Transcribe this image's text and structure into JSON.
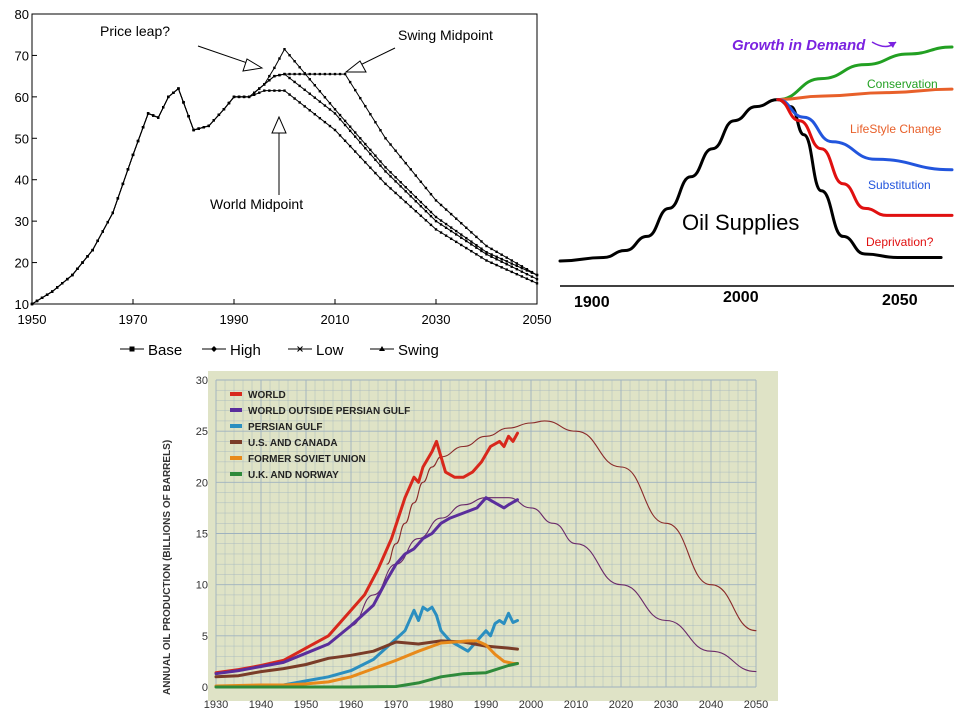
{
  "chart_data": [
    {
      "type": "line",
      "xlim": [
        1950,
        2050
      ],
      "ylim": [
        10,
        80
      ],
      "x_ticks": [
        "1950",
        "1970",
        "1990",
        "2010",
        "2030",
        "2050"
      ],
      "y_ticks": [
        "10",
        "20",
        "30",
        "40",
        "50",
        "60",
        "70",
        "80"
      ],
      "grid": false,
      "legend": "bottom",
      "series": [
        {
          "name": "Base",
          "marker": "square",
          "points": [
            [
              1950,
              10
            ],
            [
              1954,
              13
            ],
            [
              1958,
              17
            ],
            [
              1962,
              23
            ],
            [
              1966,
              32
            ],
            [
              1970,
              46
            ],
            [
              1973,
              56
            ],
            [
              1975,
              55
            ],
            [
              1977,
              60
            ],
            [
              1979,
              62
            ],
            [
              1982,
              52
            ],
            [
              1985,
              53
            ],
            [
              1988,
              57
            ],
            [
              1990,
              60
            ],
            [
              1993,
              60
            ],
            [
              1996,
              63
            ],
            [
              1998,
              65
            ],
            [
              2000,
              65.5
            ],
            [
              2010,
              56
            ],
            [
              2020,
              42
            ],
            [
              2030,
              30
            ],
            [
              2040,
              22
            ],
            [
              2050,
              16
            ]
          ]
        },
        {
          "name": "High",
          "marker": "diamond",
          "points": [
            [
              1950,
              10
            ],
            [
              1954,
              13
            ],
            [
              1958,
              17
            ],
            [
              1962,
              23
            ],
            [
              1966,
              32
            ],
            [
              1970,
              46
            ],
            [
              1973,
              56
            ],
            [
              1975,
              55
            ],
            [
              1977,
              60
            ],
            [
              1979,
              62
            ],
            [
              1982,
              52
            ],
            [
              1985,
              53
            ],
            [
              1988,
              57
            ],
            [
              1990,
              60
            ],
            [
              1993,
              60
            ],
            [
              1996,
              63
            ],
            [
              1998,
              67
            ],
            [
              2000,
              71.5
            ],
            [
              2010,
              57
            ],
            [
              2020,
              43
            ],
            [
              2030,
              31
            ],
            [
              2040,
              22.5
            ],
            [
              2050,
              17
            ]
          ]
        },
        {
          "name": "Low",
          "marker": "x",
          "points": [
            [
              1950,
              10
            ],
            [
              1954,
              13
            ],
            [
              1958,
              17
            ],
            [
              1962,
              23
            ],
            [
              1966,
              32
            ],
            [
              1970,
              46
            ],
            [
              1973,
              56
            ],
            [
              1975,
              55
            ],
            [
              1977,
              60
            ],
            [
              1979,
              62
            ],
            [
              1982,
              52
            ],
            [
              1985,
              53
            ],
            [
              1988,
              57
            ],
            [
              1990,
              60
            ],
            [
              1993,
              60
            ],
            [
              1996,
              61.5
            ],
            [
              2000,
              61.5
            ],
            [
              2010,
              52
            ],
            [
              2020,
              39
            ],
            [
              2030,
              28
            ],
            [
              2040,
              20.5
            ],
            [
              2050,
              15
            ]
          ]
        },
        {
          "name": "Swing",
          "marker": "triangle",
          "points": [
            [
              1950,
              10
            ],
            [
              1954,
              13
            ],
            [
              1958,
              17
            ],
            [
              1962,
              23
            ],
            [
              1966,
              32
            ],
            [
              1970,
              46
            ],
            [
              1973,
              56
            ],
            [
              1975,
              55
            ],
            [
              1977,
              60
            ],
            [
              1979,
              62
            ],
            [
              1982,
              52
            ],
            [
              1985,
              53
            ],
            [
              1988,
              57
            ],
            [
              1990,
              60
            ],
            [
              1993,
              60
            ],
            [
              1996,
              63
            ],
            [
              1998,
              65
            ],
            [
              2000,
              65.5
            ],
            [
              2012,
              65.5
            ],
            [
              2020,
              50
            ],
            [
              2030,
              35
            ],
            [
              2040,
              24
            ],
            [
              2050,
              17
            ]
          ]
        }
      ],
      "annotations": [
        {
          "text": "Price leap?",
          "at": [
            1996,
            67
          ]
        },
        {
          "text": "Swing Midpoint",
          "at": [
            2012,
            65.5
          ]
        },
        {
          "text": "World Midpoint",
          "at": [
            1998,
            61
          ]
        }
      ]
    },
    {
      "type": "line",
      "xlim": [
        1900,
        2080
      ],
      "x_ticks": [
        "1900",
        "2000",
        "2050"
      ],
      "grid": false,
      "legend": "inline",
      "series": [
        {
          "label": "Oil Supplies",
          "color": "#000000",
          "points": [
            [
              1900,
              2
            ],
            [
              1920,
              3
            ],
            [
              1930,
              5
            ],
            [
              1940,
              9
            ],
            [
              1950,
              17
            ],
            [
              1960,
              26
            ],
            [
              1970,
              34
            ],
            [
              1980,
              42
            ],
            [
              1990,
              46
            ],
            [
              2000,
              48
            ],
            [
              2006,
              46
            ],
            [
              2012,
              38
            ],
            [
              2020,
              22
            ],
            [
              2030,
              9
            ],
            [
              2040,
              4
            ],
            [
              2055,
              3
            ],
            [
              2075,
              3
            ]
          ]
        },
        {
          "label": "Conservation",
          "color": "#22a022",
          "points": [
            [
              2000,
              48
            ],
            [
              2020,
              54
            ],
            [
              2040,
              58
            ],
            [
              2060,
              61
            ],
            [
              2080,
              63
            ]
          ]
        },
        {
          "label": "LifeStyle Change",
          "color": "#e8602a",
          "points": [
            [
              2000,
              48
            ],
            [
              2020,
              49
            ],
            [
              2050,
              50
            ],
            [
              2080,
              51
            ]
          ]
        },
        {
          "label": "Substitution",
          "color": "#2255dd",
          "points": [
            [
              2000,
              48
            ],
            [
              2012,
              43
            ],
            [
              2025,
              36
            ],
            [
              2045,
              31
            ],
            [
              2080,
              28
            ]
          ]
        },
        {
          "label": "Deprivation?",
          "color": "#e01010",
          "points": [
            [
              2000,
              48
            ],
            [
              2010,
              42
            ],
            [
              2020,
              34
            ],
            [
              2030,
              24
            ],
            [
              2040,
              17
            ],
            [
              2050,
              15
            ],
            [
              2080,
              15
            ]
          ]
        }
      ],
      "annotations": [
        {
          "text": "Growth in Demand",
          "color": "#7b22e0"
        },
        {
          "text": "Oil Supplies",
          "color": "#000000"
        }
      ]
    },
    {
      "type": "line",
      "ylabel": "ANNUAL OIL PRODUCTION (BILLIONS OF BARRELS)",
      "xlim": [
        1930,
        2050
      ],
      "ylim": [
        0,
        30
      ],
      "x_ticks": [
        "1930",
        "1940",
        "1950",
        "1960",
        "1970",
        "1980",
        "1990",
        "2000",
        "2010",
        "2020",
        "2030",
        "2040",
        "2050"
      ],
      "y_ticks": [
        "0",
        "5",
        "10",
        "15",
        "20",
        "25",
        "30"
      ],
      "grid": true,
      "legend": "top-left",
      "series": [
        {
          "name": "WORLD",
          "color": "#d8281c",
          "x": [
            1930,
            1935,
            1940,
            1945,
            1950,
            1955,
            1960,
            1963,
            1966,
            1969,
            1972,
            1974,
            1975,
            1976,
            1978,
            1979,
            1980,
            1981,
            1983,
            1985,
            1987,
            1989,
            1991,
            1993,
            1994,
            1995,
            1996,
            1997
          ],
          "y": [
            1.4,
            1.7,
            2.1,
            2.6,
            3.8,
            5.0,
            7.5,
            9.0,
            11.5,
            14.5,
            18.5,
            20.5,
            20.0,
            21.5,
            23.0,
            24.0,
            22.5,
            21.0,
            20.5,
            20.5,
            21.0,
            22.0,
            23.5,
            24.0,
            23.5,
            24.5,
            24.0,
            24.8
          ]
        },
        {
          "name": "WORLD OUTSIDE PERSIAN GULF",
          "color": "#5a2e9c",
          "x": [
            1930,
            1935,
            1940,
            1945,
            1950,
            1955,
            1960,
            1965,
            1968,
            1970,
            1972,
            1974,
            1976,
            1978,
            1980,
            1982,
            1985,
            1988,
            1990,
            1992,
            1994,
            1995,
            1997
          ],
          "y": [
            1.3,
            1.6,
            2.0,
            2.4,
            3.3,
            4.2,
            6.0,
            8.0,
            10.5,
            12.0,
            13.0,
            13.5,
            14.5,
            15.0,
            16.0,
            16.5,
            17.0,
            17.5,
            18.5,
            18.0,
            17.5,
            17.8,
            18.3
          ]
        },
        {
          "name": "PERSIAN GULF",
          "color": "#2b8fc0",
          "x": [
            1930,
            1940,
            1945,
            1950,
            1955,
            1960,
            1965,
            1970,
            1972,
            1974,
            1975,
            1976,
            1977,
            1978,
            1979,
            1980,
            1982,
            1984,
            1986,
            1988,
            1990,
            1991,
            1992,
            1993,
            1994,
            1995,
            1996,
            1997
          ],
          "y": [
            0.05,
            0.1,
            0.2,
            0.6,
            1.0,
            1.6,
            2.7,
            4.7,
            5.5,
            7.5,
            6.5,
            7.8,
            7.5,
            7.8,
            7.0,
            5.5,
            4.5,
            4.0,
            3.5,
            4.5,
            5.5,
            5.0,
            6.2,
            6.5,
            6.2,
            7.2,
            6.3,
            6.5
          ]
        },
        {
          "name": "U.S. AND CANADA",
          "color": "#7a3c28",
          "x": [
            1930,
            1935,
            1940,
            1945,
            1950,
            1955,
            1960,
            1965,
            1970,
            1975,
            1980,
            1985,
            1990,
            1995,
            1997
          ],
          "y": [
            1.0,
            1.1,
            1.5,
            1.8,
            2.2,
            2.8,
            3.1,
            3.5,
            4.4,
            4.2,
            4.5,
            4.4,
            4.0,
            3.8,
            3.7
          ]
        },
        {
          "name": "FORMER SOVIET UNION",
          "color": "#e88a1a",
          "x": [
            1930,
            1935,
            1940,
            1945,
            1950,
            1955,
            1960,
            1965,
            1970,
            1975,
            1980,
            1983,
            1986,
            1988,
            1990,
            1992,
            1994,
            1996,
            1997
          ],
          "y": [
            0.1,
            0.15,
            0.2,
            0.2,
            0.3,
            0.5,
            1.0,
            1.8,
            2.6,
            3.5,
            4.3,
            4.4,
            4.5,
            4.5,
            4.1,
            3.2,
            2.5,
            2.3,
            2.3
          ]
        },
        {
          "name": "U.K. AND NORWAY",
          "color": "#2e8a3a",
          "x": [
            1930,
            1960,
            1970,
            1975,
            1980,
            1985,
            1990,
            1995,
            1997
          ],
          "y": [
            0,
            0,
            0.05,
            0.4,
            1.0,
            1.3,
            1.4,
            2.1,
            2.3
          ]
        },
        {
          "name": "",
          "color": "#8a2a2a",
          "thin": true,
          "x": [
            1968,
            1970,
            1972,
            1974,
            1976,
            1978,
            1980,
            1985,
            1990,
            1995,
            2000,
            2003,
            2010,
            2020,
            2030,
            2040,
            2050
          ],
          "y": [
            12,
            14,
            16,
            18,
            20,
            21.5,
            22.5,
            23.5,
            24.5,
            25.3,
            25.8,
            26,
            25,
            21.5,
            16,
            10,
            5.5
          ]
        },
        {
          "name": "",
          "color": "#6a2a6a",
          "thin": true,
          "x": [
            1960,
            1965,
            1970,
            1975,
            1980,
            1985,
            1990,
            1995,
            2000,
            2005,
            2010,
            2020,
            2030,
            2040,
            2050
          ],
          "y": [
            6,
            9,
            12,
            14.5,
            16.5,
            17.8,
            18.5,
            18.5,
            17.5,
            16,
            14,
            10,
            6.5,
            3.5,
            1.5
          ]
        }
      ]
    }
  ],
  "chart1": {
    "x_ticks": [
      "1950",
      "1970",
      "1990",
      "2010",
      "2030",
      "2050"
    ],
    "y_ticks": [
      "10",
      "20",
      "30",
      "40",
      "50",
      "60",
      "70",
      "80"
    ],
    "annotations": [
      "Price leap?",
      "Swing Midpoint",
      "World Midpoint"
    ],
    "legend": [
      "Base",
      "High",
      "Low",
      "Swing"
    ]
  },
  "chart2": {
    "title": "Growth in Demand",
    "labels": [
      "Conservation",
      "LifeStyle Change",
      "Substitution",
      "Deprivation?"
    ],
    "supply_label": "Oil Supplies",
    "x_ticks": [
      "1900",
      "2000",
      "2050"
    ]
  },
  "chart3": {
    "ylabel": "ANNUAL OIL PRODUCTION (BILLIONS OF BARRELS)",
    "x_ticks": [
      "1930",
      "1940",
      "1950",
      "1960",
      "1970",
      "1980",
      "1990",
      "2000",
      "2010",
      "2020",
      "2030",
      "2040",
      "2050"
    ],
    "y_ticks": [
      "0",
      "5",
      "10",
      "15",
      "20",
      "25",
      "30"
    ],
    "legend": [
      "WORLD",
      "WORLD OUTSIDE PERSIAN GULF",
      "PERSIAN GULF",
      "U.S. AND CANADA",
      "FORMER SOVIET UNION",
      "U.K. AND NORWAY"
    ]
  },
  "colors": {
    "world": "#d8281c",
    "outside_gulf": "#5a2e9c",
    "persian_gulf": "#2b8fc0",
    "us_canada": "#7a3c28",
    "soviet": "#e88a1a",
    "uk_norway": "#2e8a3a",
    "conservation": "#22a022",
    "lifestyle": "#e8602a",
    "substitution": "#2255dd",
    "deprivation": "#e01010",
    "growth_title": "#7b22e0"
  }
}
